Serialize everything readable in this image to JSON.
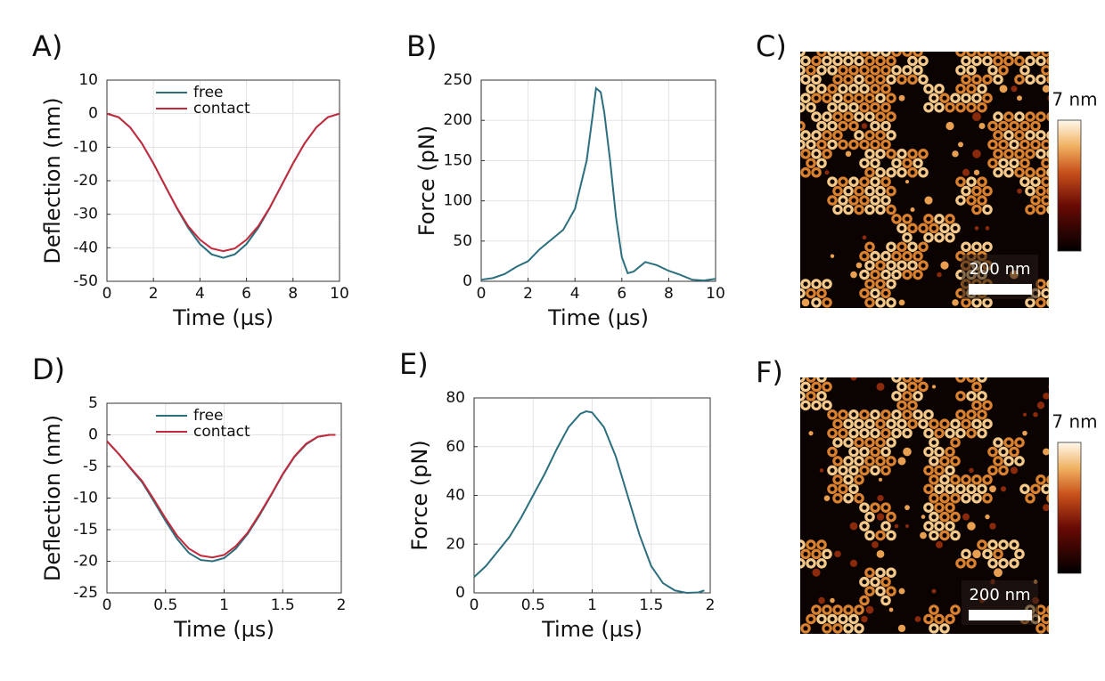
{
  "chart_data": [
    {
      "type": "line",
      "title": "A)",
      "xlabel": "Time (µs)",
      "ylabel": "Deflection (nm)",
      "x": [
        0,
        0.5,
        1,
        1.5,
        2,
        2.5,
        3,
        3.5,
        4,
        4.5,
        5,
        5.5,
        6,
        6.5,
        7,
        7.5,
        8,
        8.5,
        9,
        9.5,
        10
      ],
      "series": [
        {
          "name": "free",
          "color": "#2b6f7e",
          "values": [
            0,
            -1.05,
            -4.11,
            -8.86,
            -14.86,
            -21.5,
            -28.14,
            -34.14,
            -38.89,
            -41.95,
            -43,
            -41.95,
            -38.89,
            -34.14,
            -28.14,
            -21.5,
            -14.86,
            -8.86,
            -4.11,
            -1.05,
            0
          ]
        },
        {
          "name": "contact",
          "color": "#c42a3c",
          "values": [
            0,
            -1.05,
            -4.11,
            -8.86,
            -14.86,
            -21.5,
            -28,
            -33.6,
            -37.6,
            -40.2,
            -41,
            -40.2,
            -37.6,
            -33.6,
            -28,
            -21.5,
            -14.86,
            -8.86,
            -4.11,
            -1.05,
            0
          ]
        }
      ],
      "xlim": [
        0,
        10
      ],
      "xticks": [
        0,
        2,
        4,
        6,
        8,
        10
      ],
      "ylim": [
        -50,
        10
      ],
      "yticks": [
        -50,
        -40,
        -30,
        -20,
        -10,
        0,
        10
      ],
      "grid": true,
      "legend": "top"
    },
    {
      "type": "line",
      "title": "B)",
      "xlabel": "Time (µs)",
      "ylabel": "Force (pN)",
      "x": [
        0,
        0.5,
        1,
        1.5,
        2,
        2.5,
        3,
        3.5,
        4,
        4.5,
        4.75,
        4.9,
        5.1,
        5.25,
        5.5,
        5.75,
        6,
        6.25,
        6.5,
        7,
        7.5,
        8,
        8.5,
        9,
        9.5,
        10
      ],
      "series": [
        {
          "name": "force",
          "color": "#2b6f7e",
          "values": [
            2,
            4,
            9,
            18,
            25,
            40,
            52,
            64,
            90,
            150,
            205,
            240,
            235,
            210,
            150,
            80,
            30,
            10,
            12,
            24,
            20,
            13,
            8,
            2,
            1,
            3
          ]
        }
      ],
      "xlim": [
        0,
        10
      ],
      "xticks": [
        0,
        2,
        4,
        6,
        8,
        10
      ],
      "ylim": [
        0,
        250
      ],
      "yticks": [
        0,
        50,
        100,
        150,
        200,
        250
      ],
      "grid": true
    },
    {
      "type": "line",
      "title": "D)",
      "xlabel": "Time (µs)",
      "ylabel": "Deflection (nm)",
      "x": [
        0,
        0.1,
        0.2,
        0.3,
        0.4,
        0.5,
        0.6,
        0.7,
        0.8,
        0.9,
        1,
        1.1,
        1.2,
        1.3,
        1.4,
        1.5,
        1.6,
        1.7,
        1.8,
        1.9,
        1.95
      ],
      "series": [
        {
          "name": "free",
          "color": "#2b6f7e",
          "values": [
            -1,
            -3,
            -5.3,
            -7.5,
            -10.5,
            -13.6,
            -16.5,
            -18.7,
            -19.8,
            -20,
            -19.5,
            -18,
            -15.7,
            -12.8,
            -9.6,
            -6.3,
            -3.5,
            -1.5,
            -0.3,
            0,
            0
          ]
        },
        {
          "name": "contact",
          "color": "#c42a3c",
          "values": [
            -1,
            -3,
            -5.2,
            -7.3,
            -10.2,
            -13.2,
            -16,
            -18,
            -19.1,
            -19.4,
            -19,
            -17.6,
            -15.5,
            -12.6,
            -9.5,
            -6.2,
            -3.4,
            -1.4,
            -0.3,
            0,
            0
          ]
        }
      ],
      "xlim": [
        0,
        2
      ],
      "xticks": [
        0,
        0.5,
        1,
        1.5,
        2
      ],
      "ylim": [
        -25,
        5
      ],
      "yticks": [
        -25,
        -20,
        -15,
        -10,
        -5,
        0,
        5
      ],
      "grid": true,
      "legend": "top"
    },
    {
      "type": "line",
      "title": "E)",
      "xlabel": "Time (µs)",
      "ylabel": "Force (pN)",
      "x": [
        0,
        0.1,
        0.2,
        0.3,
        0.4,
        0.5,
        0.6,
        0.7,
        0.8,
        0.9,
        0.95,
        1,
        1.1,
        1.2,
        1.3,
        1.4,
        1.5,
        1.6,
        1.7,
        1.8,
        1.9,
        1.95
      ],
      "series": [
        {
          "name": "force",
          "color": "#2b6f7e",
          "values": [
            6.5,
            11,
            17,
            23,
            31,
            40,
            49,
            59,
            68,
            73.5,
            74.5,
            74,
            68,
            56,
            40,
            24,
            11,
            4,
            1,
            0,
            0.2,
            1
          ]
        }
      ],
      "xlim": [
        0,
        2
      ],
      "xticks": [
        0,
        0.5,
        1,
        1.5,
        2
      ],
      "ylim": [
        0,
        80
      ],
      "yticks": [
        0,
        20,
        40,
        60,
        80
      ],
      "grid": true
    }
  ],
  "images": [
    {
      "label": "C)",
      "colorbar_label": "7 nm",
      "scale_label": "200 nm"
    },
    {
      "label": "F)",
      "colorbar_label": "7 nm",
      "scale_label": "200 nm"
    }
  ]
}
